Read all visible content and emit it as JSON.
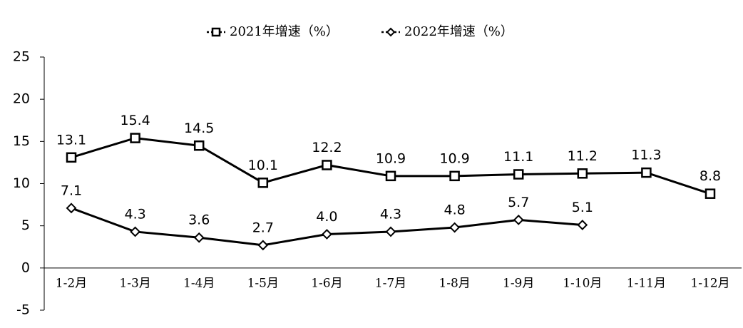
{
  "chart_data": {
    "type": "line",
    "categories": [
      "1-2月",
      "1-3月",
      "1-4月",
      "1-5月",
      "1-6月",
      "1-7月",
      "1-8月",
      "1-9月",
      "1-10月",
      "1-11月",
      "1-12月"
    ],
    "series": [
      {
        "name": "2021年增速（%）",
        "color": "#000000",
        "marker": "square",
        "values": [
          13.1,
          15.4,
          14.5,
          10.1,
          12.2,
          10.9,
          10.9,
          11.1,
          11.2,
          11.3,
          8.8
        ],
        "value_labels": [
          "13.1",
          "15.4",
          "14.5",
          "10.1",
          "12.2",
          "10.9",
          "10.9",
          "11.1",
          "11.2",
          "11.3",
          "8.8"
        ]
      },
      {
        "name": "2022年增速（%）",
        "color": "#000000",
        "marker": "diamond",
        "values": [
          7.1,
          4.3,
          3.6,
          2.7,
          4.0,
          4.3,
          4.8,
          5.7,
          5.1,
          null,
          null
        ],
        "value_labels": [
          "7.1",
          "4.3",
          "3.6",
          "2.7",
          "4.0",
          "4.3",
          "4.8",
          "5.7",
          "5.1",
          null,
          null
        ]
      }
    ],
    "ylim": [
      -5,
      25
    ],
    "yticks": [
      -5,
      0,
      5,
      10,
      15,
      20,
      25
    ],
    "grid": false,
    "legend": "top"
  }
}
